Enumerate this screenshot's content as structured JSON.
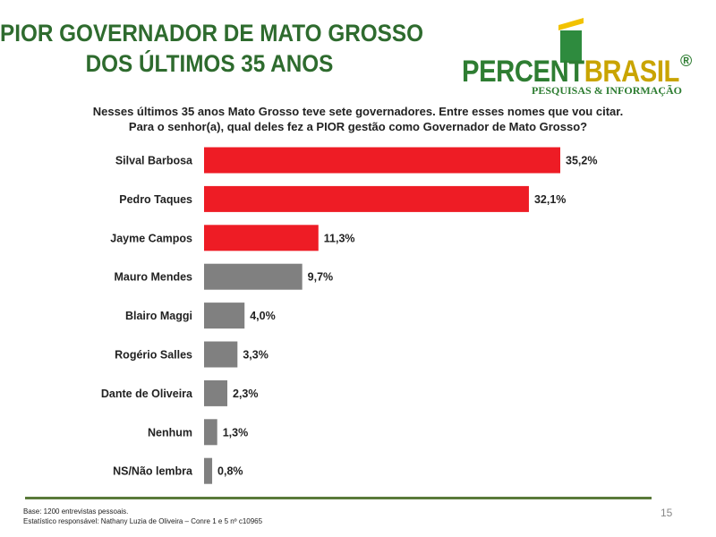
{
  "title": {
    "line1": "PIOR GOVERNADOR DE MATO GROSSO",
    "line2": "DOS ÚLTIMOS 35 ANOS"
  },
  "logo": {
    "word_part1": "PERCENT",
    "word_part2": "BRASIL",
    "registered": "®",
    "tagline": "PESQUISAS & INFORMAÇÃO"
  },
  "question": {
    "line1": "Nesses últimos 35 anos Mato Grosso teve sete governadores. Entre esses nomes que vou citar.",
    "line2": "Para o senhor(a), qual deles fez a PIOR gestão como Governador de Mato Grosso?"
  },
  "chart_data": {
    "type": "bar",
    "orientation": "horizontal",
    "categories": [
      "Silval Barbosa",
      "Pedro Taques",
      "Jayme Campos",
      "Mauro Mendes",
      "Blairo Maggi",
      "Rogério Salles",
      "Dante de Oliveira",
      "Nenhum",
      "NS/Não lembra"
    ],
    "values": [
      35.2,
      32.1,
      11.3,
      9.7,
      4.0,
      3.3,
      2.3,
      1.3,
      0.8
    ],
    "data_labels": [
      "35,2%",
      "32,1%",
      "11,3%",
      "9,7%",
      "4,0%",
      "3,3%",
      "2,3%",
      "1,3%",
      "0,8%"
    ],
    "bar_colors": [
      "#ee1c25",
      "#ee1c25",
      "#ee1c25",
      "#808080",
      "#808080",
      "#808080",
      "#808080",
      "#808080",
      "#808080"
    ],
    "xlim": [
      0,
      35.2
    ],
    "grid": false,
    "legend": "none"
  },
  "footer": {
    "base": "Base: 1200 entrevistas pessoais.",
    "statistician": "Estatístico responsável: Nathany Luzia de Oliveira – Conre 1 e 5 nº c10965",
    "page_number": "15"
  },
  "colors": {
    "title": "#2e6b2e",
    "highlight_bar": "#ee1c25",
    "other_bar": "#808080",
    "footer_line": "#5a7a3a"
  }
}
